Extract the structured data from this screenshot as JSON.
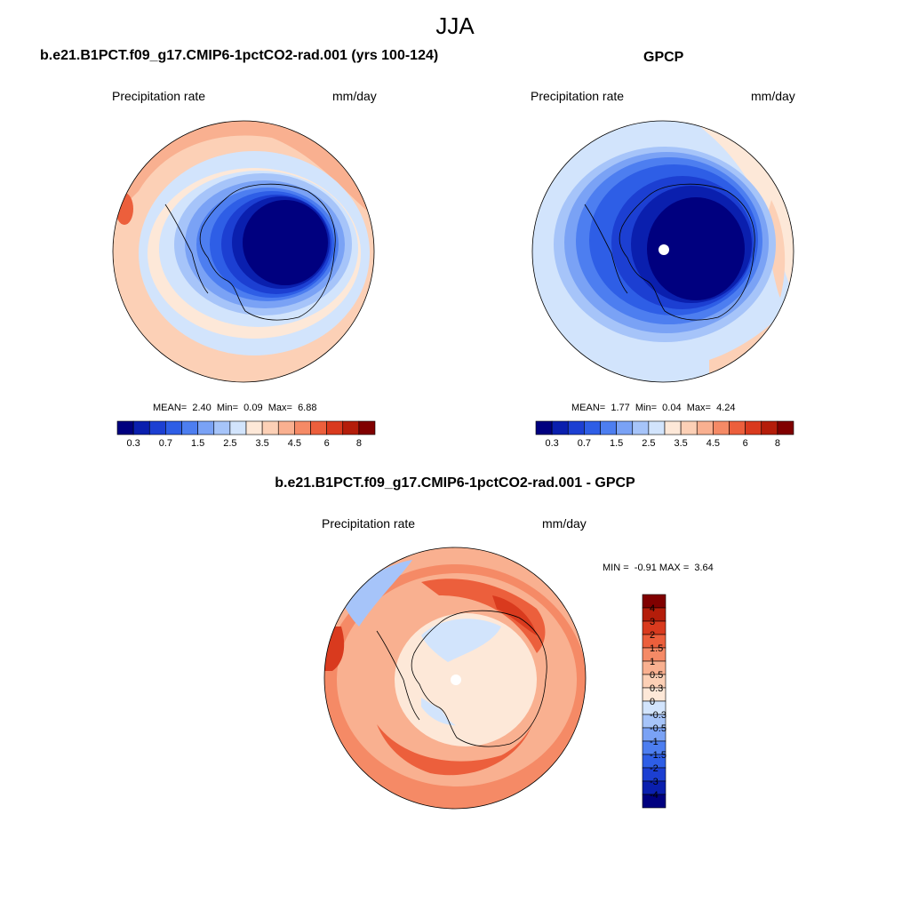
{
  "figure": {
    "title": "JJA"
  },
  "panels": [
    {
      "title": "b.e21.B1PCT.f09_g17.CMIP6-1pctCO2-rad.001 (yrs 100-124)",
      "left_label": "Precipitation rate",
      "right_label": "mm/day",
      "stats": {
        "mean_label": "MEAN=",
        "mean": "2.40",
        "min_label": "Min=",
        "min": "0.09",
        "max_label": "Max=",
        "max": "6.88"
      }
    },
    {
      "title": "GPCP",
      "left_label": "Precipitation rate",
      "right_label": "mm/day",
      "stats": {
        "mean_label": "MEAN=",
        "mean": "1.77",
        "min_label": "Min=",
        "min": "0.04",
        "max_label": "Max=",
        "max": "4.24"
      }
    },
    {
      "title": "b.e21.B1PCT.f09_g17.CMIP6-1pctCO2-rad.001 - GPCP",
      "left_label": "Precipitation rate",
      "right_label": "mm/day",
      "stats": {
        "min_label": "MIN =",
        "min": "-0.91",
        "max_label": "MAX =",
        "max": "3.64"
      }
    }
  ],
  "colorbar_horizontal": {
    "colors": [
      "#00007f",
      "#0a1fae",
      "#1c3fd2",
      "#2e5ee6",
      "#4d7ef0",
      "#7aa2f5",
      "#a6c4f9",
      "#d2e4fc",
      "#fde8d8",
      "#fcd0b6",
      "#f9b090",
      "#f58a66",
      "#ec5f3c",
      "#d93a1e",
      "#b41d0a",
      "#800000"
    ],
    "tick_labels": [
      "0.3",
      "0.7",
      "1.5",
      "2.5",
      "3.5",
      "4.5",
      "6",
      "8"
    ]
  },
  "colorbar_vertical": {
    "colors": [
      "#800000",
      "#b41d0a",
      "#d93a1e",
      "#ec5f3c",
      "#f58a66",
      "#f9b090",
      "#fcd0b6",
      "#fde8d8",
      "#d2e4fc",
      "#a6c4f9",
      "#7aa2f5",
      "#4d7ef0",
      "#2e5ee6",
      "#1c3fd2",
      "#0a1fae",
      "#00007f"
    ],
    "tick_labels": [
      "4",
      "3",
      "2",
      "1.5",
      "1",
      "0.5",
      "0.3",
      "0",
      "-0.3",
      "-0.5",
      "-1",
      "-1.5",
      "-2",
      "-3",
      "-4"
    ]
  }
}
